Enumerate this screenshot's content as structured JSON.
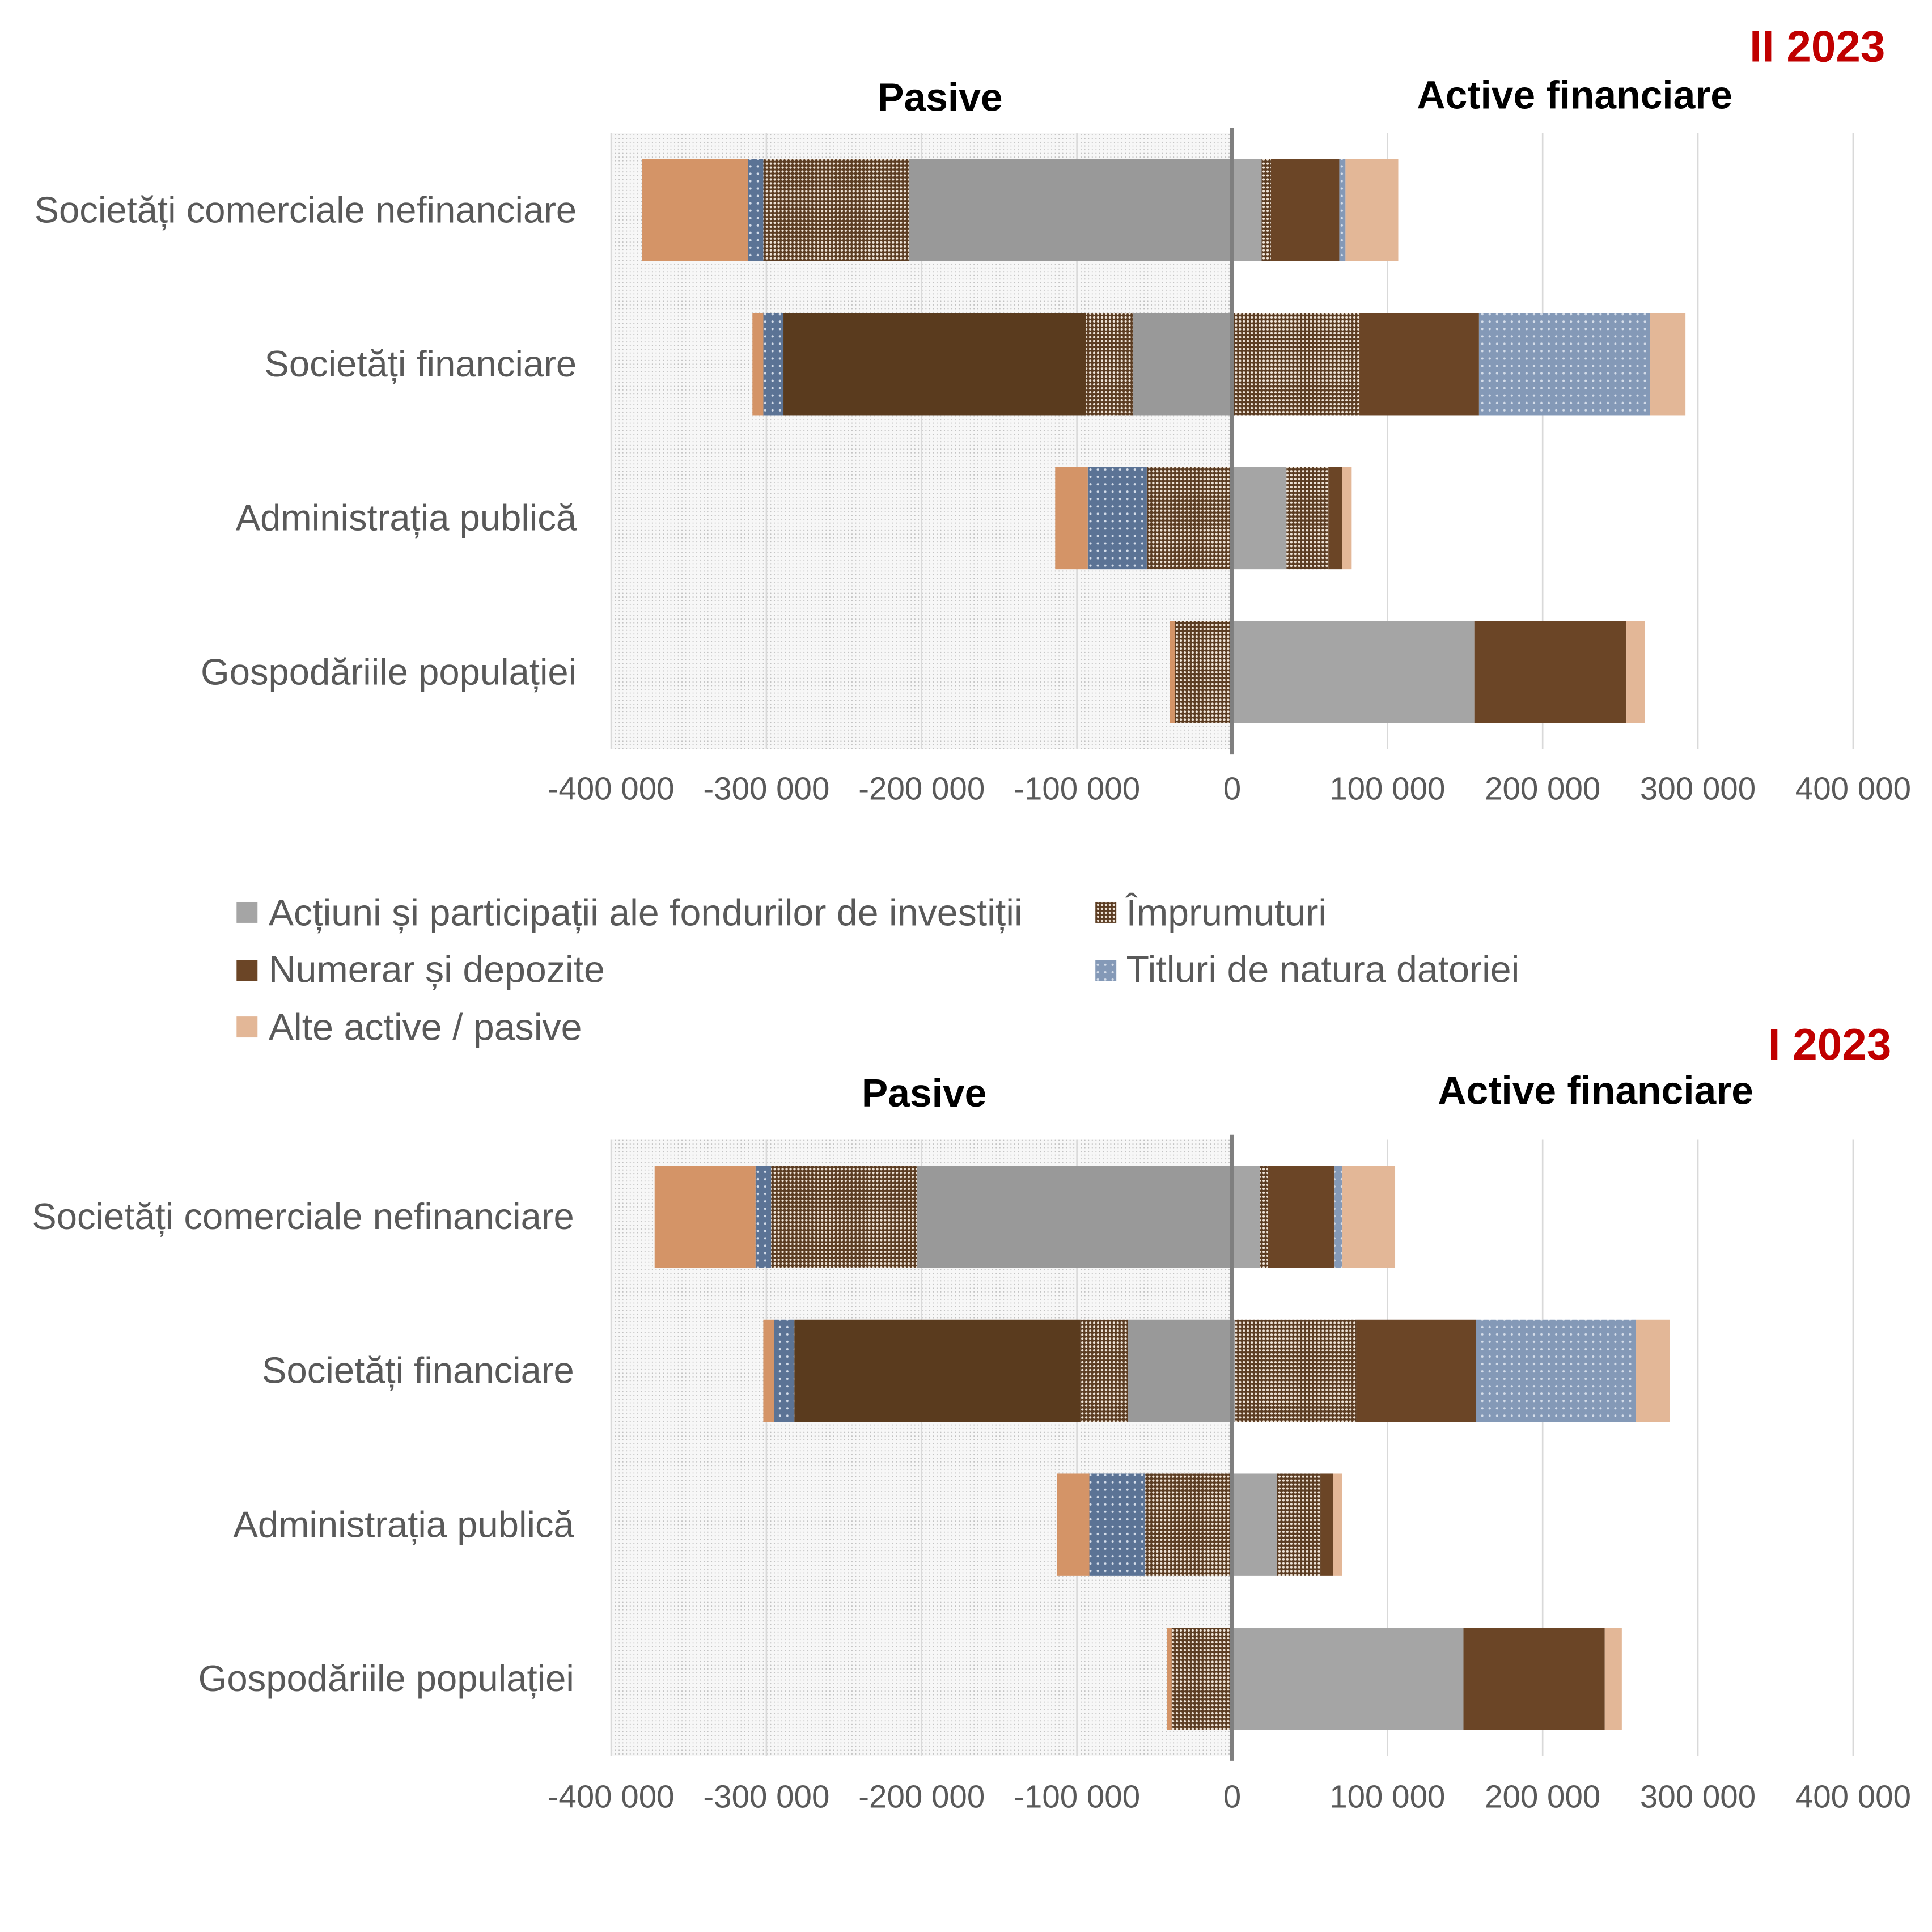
{
  "colors": {
    "text": "#595959",
    "heading": "#000000",
    "period_title": "#c00000",
    "gridline": "#d9d9d9",
    "zero_axis": "#7f7f7f",
    "pasive_area": "#f7f7f7",
    "pasive_area_dots": "#c2c2c2"
  },
  "chart_data": [
    {
      "type": "bar",
      "orientation": "horizontal",
      "stacked": true,
      "title": "II 2023",
      "left_label": "Pasive",
      "right_label": "Active financiare",
      "categories": [
        "Societăți comerciale nefinanciare",
        "Societăți financiare",
        "Administrația publică",
        "Gospodăriile populației"
      ],
      "xlim": [
        -400000,
        400000
      ],
      "xticks": [
        -400000,
        -300000,
        -200000,
        -100000,
        0,
        100000,
        200000,
        300000,
        400000
      ],
      "xtick_labels": [
        "-400 000",
        "-300 000",
        "-200 000",
        "-100 000",
        "0",
        "100 000",
        "200 000",
        "300 000",
        "400 000"
      ],
      "grid": true,
      "legend": "bottom",
      "series": [
        {
          "name": "Acțiuni și participații ale fondurilor de investiții",
          "color_pasive": "#999999",
          "color_active": "#a5a5a5",
          "pasive": [
            -208000,
            -64000,
            0,
            0
          ],
          "active": [
            19000,
            1000,
            35000,
            156000
          ]
        },
        {
          "name": "Împrumuturi",
          "color_pasive": "#5b3c22",
          "color_active": "#5b3c22",
          "pattern_dots": "#efe4d8",
          "pasive": [
            -94000,
            -30000,
            -55000,
            -37000
          ],
          "active": [
            6000,
            81000,
            27000,
            0
          ]
        },
        {
          "name": "Numerar și depozite",
          "color_pasive": "#5a3b1e",
          "color_active": "#6b4526",
          "pasive": [
            0,
            -195000,
            0,
            0
          ],
          "active": [
            44000,
            77000,
            9000,
            98000
          ]
        },
        {
          "name": "Titluri de natura datoriei",
          "color_pasive": "#5b7395",
          "color_active": "#8499b7",
          "pattern_dots": "#d6deea",
          "pasive": [
            -10000,
            -13000,
            -38000,
            0
          ],
          "active": [
            4000,
            110000,
            0,
            0
          ]
        },
        {
          "name": "Alte active / pasive",
          "color_pasive": "#d49467",
          "color_active": "#e3b797",
          "pasive": [
            -68000,
            -7000,
            -21000,
            -3000
          ],
          "active": [
            34000,
            23000,
            6000,
            12000
          ]
        }
      ]
    },
    {
      "type": "bar",
      "orientation": "horizontal",
      "stacked": true,
      "title": "I 2023",
      "left_label": "Pasive",
      "right_label": "Active financiare",
      "categories": [
        "Societăți comerciale nefinanciare",
        "Societăți financiare",
        "Administrația publică",
        "Gospodăriile populației"
      ],
      "xlim": [
        -400000,
        400000
      ],
      "xticks": [
        -400000,
        -300000,
        -200000,
        -100000,
        0,
        100000,
        200000,
        300000,
        400000
      ],
      "xtick_labels": [
        "-400 000",
        "-300 000",
        "-200 000",
        "-100 000",
        "0",
        "100 000",
        "200 000",
        "300 000",
        "400 000"
      ],
      "grid": true,
      "series": [
        {
          "color_pasive": "#999999",
          "color_active": "#a5a5a5",
          "pasive": [
            -203000,
            -67000,
            0,
            0
          ],
          "active": [
            18000,
            2000,
            29000,
            149000
          ]
        },
        {
          "color_pasive": "#5b3c22",
          "color_active": "#5b3c22",
          "pattern_dots": "#efe4d8",
          "pasive": [
            -94000,
            -31000,
            -56000,
            -39000
          ],
          "active": [
            5000,
            78000,
            28000,
            0
          ]
        },
        {
          "color_pasive": "#5a3b1e",
          "color_active": "#6b4526",
          "pasive": [
            0,
            -184000,
            0,
            0
          ],
          "active": [
            43000,
            77000,
            8000,
            91000
          ]
        },
        {
          "color_pasive": "#5b7395",
          "color_active": "#8499b7",
          "pattern_dots": "#d6deea",
          "pasive": [
            -10000,
            -13000,
            -36000,
            0
          ],
          "active": [
            5000,
            103000,
            0,
            0
          ]
        },
        {
          "color_pasive": "#d49467",
          "color_active": "#e3b797",
          "pasive": [
            -65000,
            -7000,
            -21000,
            -3000
          ],
          "active": [
            34000,
            22000,
            6000,
            11000
          ]
        }
      ]
    }
  ]
}
